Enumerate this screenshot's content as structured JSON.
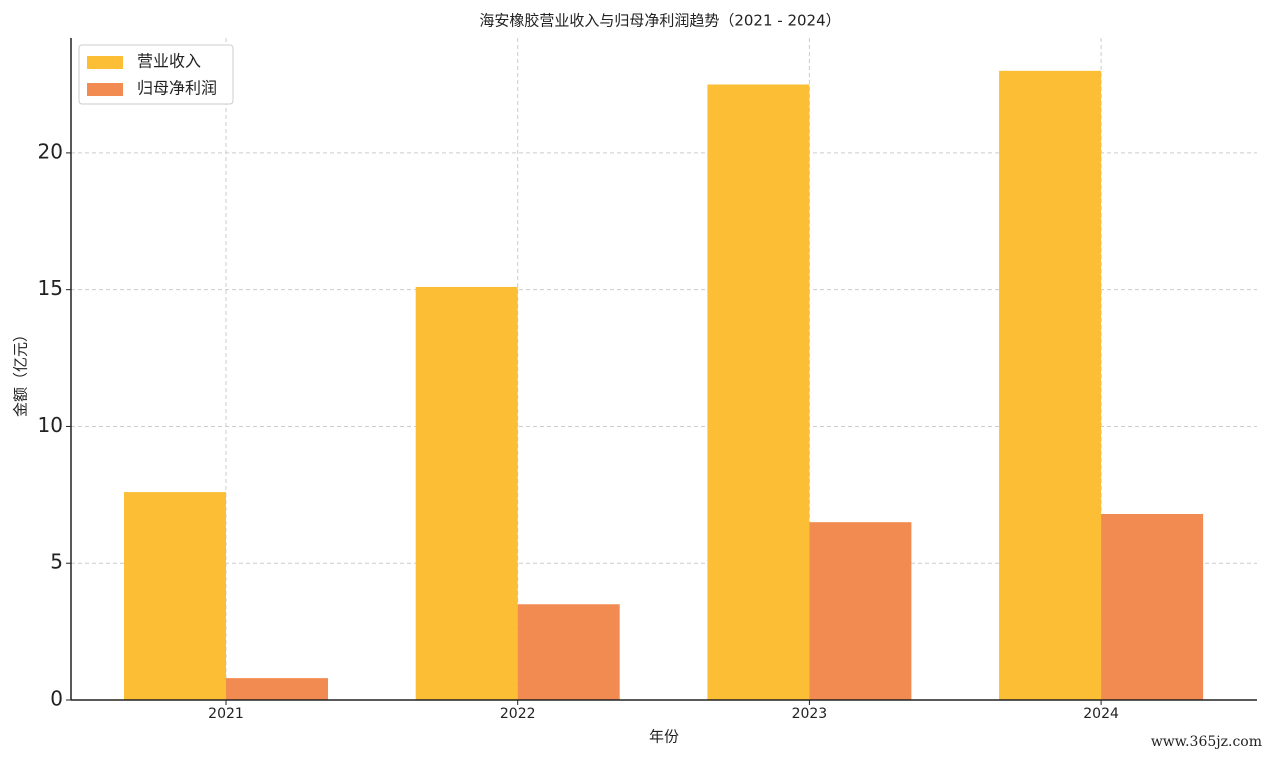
{
  "chart_data": {
    "type": "bar",
    "title": "海安橡胶营业收入与归母净利润趋势（2021 - 2024）",
    "x_label": "年份",
    "y_label": "金额（亿元）",
    "categories": [
      "2021",
      "2022",
      "2023",
      "2024"
    ],
    "series": [
      {
        "name": "营业收入",
        "color": "#fbbe34",
        "values": [
          7.6,
          15.1,
          22.5,
          23.0
        ]
      },
      {
        "name": "归母净利润",
        "color": "#f28b52",
        "values": [
          0.8,
          3.5,
          6.5,
          6.8
        ]
      }
    ],
    "ylim": [
      0,
      24.2
    ],
    "yticks": [
      0,
      5,
      10,
      15,
      20
    ],
    "grid": true,
    "legend": "upper left",
    "watermark": "www.365jz.com"
  }
}
